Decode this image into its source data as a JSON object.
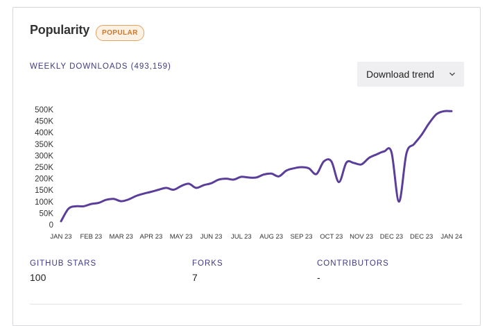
{
  "header": {
    "title": "Popularity",
    "badge": "POPULAR"
  },
  "downloads": {
    "label": "WEEKLY DOWNLOADS (493,159)"
  },
  "dropdown": {
    "selected": "Download trend",
    "icon": "chevron-down-icon"
  },
  "colors": {
    "line": "#5a3e99",
    "accent_text": "#3e3a84",
    "badge_border": "#e3a25f",
    "badge_bg": "#fdf1e4"
  },
  "chart_data": {
    "type": "line",
    "title": "",
    "xlabel": "",
    "ylabel": "",
    "ylim": [
      0,
      500000
    ],
    "y_ticks": [
      {
        "value": 0,
        "label": "0"
      },
      {
        "value": 50000,
        "label": "50K"
      },
      {
        "value": 100000,
        "label": "100K"
      },
      {
        "value": 150000,
        "label": "150K"
      },
      {
        "value": 200000,
        "label": "200K"
      },
      {
        "value": 250000,
        "label": "250K"
      },
      {
        "value": 300000,
        "label": "300K"
      },
      {
        "value": 350000,
        "label": "350K"
      },
      {
        "value": 400000,
        "label": "400K"
      },
      {
        "value": 450000,
        "label": "450K"
      },
      {
        "value": 500000,
        "label": "500K"
      }
    ],
    "x_ticks": [
      "JAN 23",
      "FEB 23",
      "MAR 23",
      "APR 23",
      "MAY 23",
      "JUN 23",
      "JUL 23",
      "AUG 23",
      "SEP 23",
      "OCT 23",
      "NOV 23",
      "DEC 23",
      "DEC 23",
      "JAN 24"
    ],
    "x_range": [
      0,
      52
    ],
    "series": [
      {
        "name": "Weekly downloads",
        "x": [
          0,
          1,
          2,
          3,
          4,
          5,
          6,
          7,
          8,
          9,
          10,
          11,
          12,
          13,
          14,
          15,
          16,
          17,
          18,
          19,
          20,
          21,
          22,
          23,
          24,
          25,
          26,
          27,
          28,
          29,
          30,
          31,
          32,
          33,
          34,
          35,
          36,
          37,
          38,
          39,
          40,
          41,
          42,
          43,
          44,
          45,
          46,
          47,
          48,
          49,
          50,
          51,
          52
        ],
        "values": [
          15000,
          70000,
          80000,
          80000,
          90000,
          95000,
          108000,
          112000,
          102000,
          110000,
          125000,
          135000,
          143000,
          152000,
          160000,
          152000,
          168000,
          178000,
          160000,
          172000,
          180000,
          196000,
          200000,
          196000,
          208000,
          205000,
          205000,
          218000,
          222000,
          210000,
          235000,
          245000,
          250000,
          245000,
          220000,
          275000,
          275000,
          185000,
          270000,
          268000,
          262000,
          290000,
          305000,
          318000,
          315000,
          100000,
          310000,
          350000,
          390000,
          440000,
          480000,
          493000,
          493000
        ]
      }
    ]
  },
  "stats": [
    {
      "label": "GITHUB STARS",
      "value": "100"
    },
    {
      "label": "FORKS",
      "value": "7"
    },
    {
      "label": "CONTRIBUTORS",
      "value": "-"
    }
  ]
}
